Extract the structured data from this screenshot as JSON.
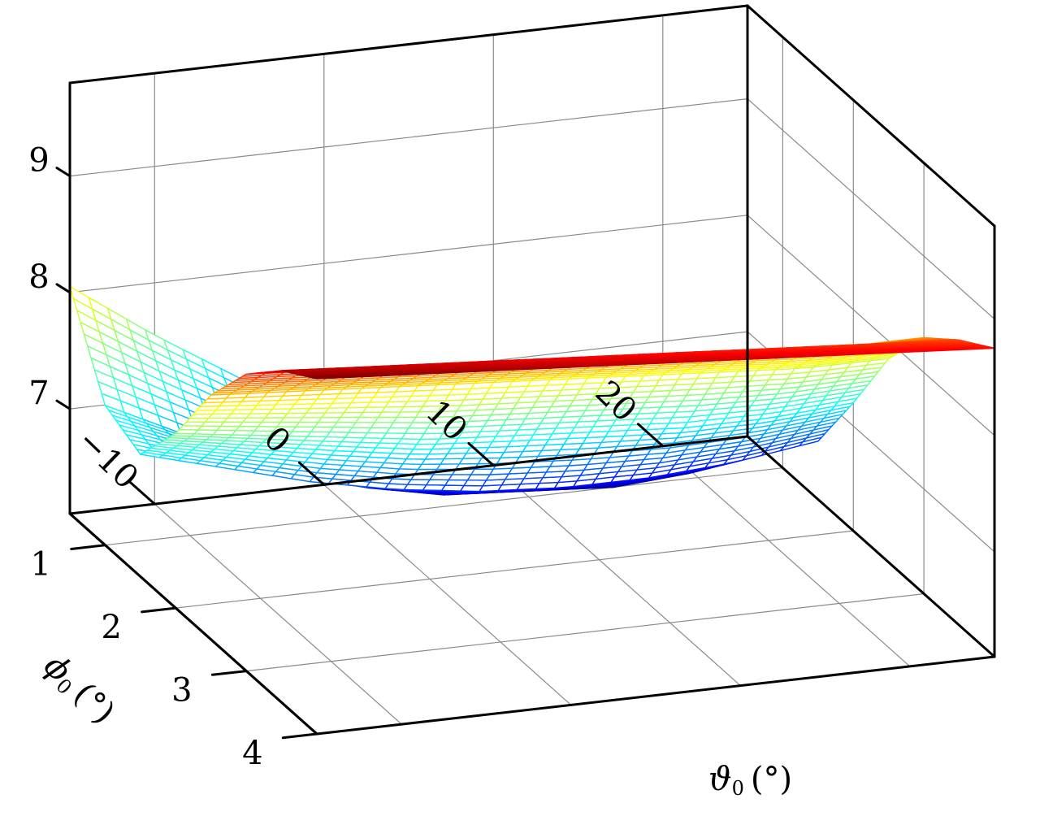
{
  "chart_data": {
    "type": "surface3d",
    "title": "",
    "x_axis": {
      "symbol": "ϑ",
      "subscript": "0",
      "unit": "(°)",
      "range": [
        0.5,
        4
      ],
      "ticks": [
        1,
        2,
        3,
        4
      ],
      "tick_labels": [
        "1",
        "2",
        "3",
        "4"
      ]
    },
    "y_axis": {
      "symbol": "ϕ",
      "subscript": "0",
      "unit": "(°)",
      "range": [
        -15,
        25
      ],
      "ticks": [
        -10,
        0,
        10,
        20
      ],
      "tick_labels": [
        "−10",
        "0",
        "10",
        "20"
      ]
    },
    "z_axis": {
      "label": "",
      "range": [
        6.1,
        9.8
      ],
      "ticks": [
        7,
        8,
        9
      ],
      "tick_labels": [
        "7",
        "8",
        "9"
      ]
    },
    "grid": true,
    "colormap": "jet",
    "mesh": {
      "theta_samples": [
        0.5,
        1.0,
        1.5,
        2.0,
        2.5,
        3.0,
        3.5,
        4.0
      ],
      "phi_samples": [
        -15,
        -10,
        -5,
        0,
        5,
        10,
        15,
        20,
        25
      ],
      "z_approx": [
        [
          8.05,
          7.3,
          7.15,
          7.6,
          8.2,
          8.65,
          8.95,
          9.15
        ],
        [
          7.55,
          6.95,
          6.95,
          7.5,
          8.15,
          8.6,
          8.9,
          9.1
        ],
        [
          7.1,
          6.6,
          6.75,
          7.4,
          8.1,
          8.55,
          8.85,
          9.05
        ],
        [
          6.75,
          6.35,
          6.6,
          7.3,
          8.05,
          8.5,
          8.8,
          9.0
        ],
        [
          6.45,
          6.2,
          6.5,
          7.25,
          8.0,
          8.45,
          8.75,
          8.95
        ],
        [
          6.25,
          6.15,
          6.45,
          7.2,
          7.95,
          8.4,
          8.7,
          8.9
        ],
        [
          6.1,
          6.1,
          6.45,
          7.15,
          7.9,
          8.35,
          8.65,
          8.85
        ],
        [
          6.05,
          6.15,
          6.5,
          7.15,
          7.85,
          8.3,
          8.6,
          8.8
        ],
        [
          6.15,
          6.3,
          6.6,
          7.2,
          7.85,
          8.3,
          8.55,
          8.75
        ]
      ]
    }
  }
}
